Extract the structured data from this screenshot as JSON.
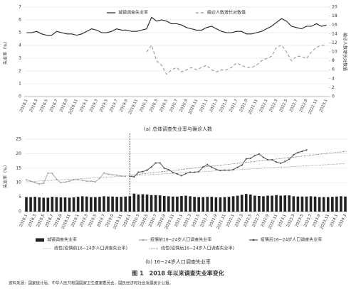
{
  "chart_data": [
    {
      "type": "line",
      "caption": "(a) 总体调查失业率与确诊人数",
      "ylabel": "失业率（%）",
      "y2label": "确诊人数增长对数值",
      "ylim": [
        0,
        7
      ],
      "yticks": [
        0,
        1,
        2,
        3,
        4,
        5,
        6,
        7
      ],
      "y2lim": [
        0,
        20
      ],
      "y2ticks": [
        0,
        2,
        4,
        6,
        8,
        10,
        12,
        14,
        16,
        18,
        20
      ],
      "grid": true,
      "categories": [
        "2018.1",
        null,
        "2018.3",
        null,
        "2018.5",
        null,
        "2018.7",
        null,
        "2018.9",
        null,
        "2018.11",
        null,
        "2019.1",
        null,
        "2019.3",
        null,
        "2019.5",
        null,
        "2019.7",
        null,
        "2019.9",
        null,
        "2019.11",
        null,
        "2020.1",
        null,
        "2020.3",
        null,
        "2020.5",
        null,
        "2020.7",
        null,
        "2020.9",
        null,
        "2020.11",
        null,
        "2021.1",
        null,
        "2021.3",
        null,
        "2021.5",
        null,
        "2021.7",
        null,
        "2021.9",
        null,
        "2021.11",
        null,
        "2022.1",
        null,
        "2022.3",
        null,
        "2022.5",
        null,
        "2022.7",
        null,
        "2022.9",
        null,
        "2022.11",
        null,
        "2023.1"
      ],
      "series": [
        {
          "name": "城镇调查失业率",
          "color": "#222222",
          "style": "solid",
          "values": [
            5.0,
            5.0,
            5.1,
            4.9,
            4.8,
            4.8,
            5.1,
            5.0,
            4.9,
            4.9,
            4.8,
            4.9,
            5.1,
            5.3,
            5.2,
            5.0,
            5.0,
            5.1,
            5.3,
            5.2,
            5.2,
            5.1,
            5.1,
            5.2,
            5.3,
            6.2,
            5.9,
            6.0,
            5.9,
            5.7,
            5.7,
            5.6,
            5.4,
            5.3,
            5.2,
            5.2,
            5.4,
            5.5,
            5.3,
            5.1,
            5.0,
            5.0,
            5.1,
            5.1,
            4.9,
            4.9,
            5.0,
            5.1,
            5.3,
            5.5,
            5.8,
            6.1,
            5.9,
            5.5,
            5.4,
            5.3,
            5.5,
            5.5,
            5.7,
            5.5,
            5.6
          ]
        },
        {
          "name": "确诊人数增长对数值",
          "color": "#999999",
          "style": "dashed",
          "axis": "y2",
          "values": [
            null,
            null,
            null,
            null,
            null,
            null,
            null,
            null,
            null,
            null,
            null,
            null,
            null,
            null,
            null,
            null,
            null,
            null,
            null,
            null,
            null,
            null,
            null,
            null,
            10,
            11.5,
            8,
            7,
            5,
            6,
            6.5,
            5.5,
            6,
            6.5,
            6,
            6.5,
            7,
            6,
            5.5,
            6,
            6,
            6.5,
            7.5,
            7,
            6.5,
            6.5,
            7,
            8,
            8.5,
            9,
            11,
            11.5,
            10,
            8,
            9,
            9,
            8.5,
            10,
            11,
            11.5,
            11.5
          ]
        }
      ]
    },
    {
      "type": "combo",
      "caption": "(b) 16~24岁人口调查失业率",
      "ylabel": "失业率（%）",
      "ylim": [
        0,
        25
      ],
      "yticks": [
        0,
        5,
        10,
        15,
        20,
        25
      ],
      "grid": true,
      "divider_at": "2020.1",
      "categories": [
        "2018.1",
        null,
        "2018.3",
        null,
        "2018.5",
        null,
        "2018.7",
        null,
        "2018.9",
        null,
        "2018.11",
        null,
        "2019.1",
        null,
        "2019.3",
        null,
        "2019.5",
        null,
        "2019.7",
        null,
        "2019.9",
        null,
        "2019.11",
        null,
        "2020.1",
        null,
        "2020.3",
        null,
        "2020.5",
        null,
        "2020.7",
        null,
        "2020.9",
        null,
        "2020.11",
        null,
        "2021.1",
        null,
        "2021.3",
        null,
        "2021.5",
        null,
        "2021.7",
        null,
        "2021.9",
        null,
        "2021.11",
        null,
        "2022.1",
        null,
        "2022.3",
        null,
        "2022.5",
        null,
        "2022.7",
        null,
        "2022.9",
        null,
        "2022.11",
        null,
        "2023.1",
        null,
        "2023.3",
        null,
        "2023.5",
        null,
        "2023.7",
        null,
        "2023.9",
        null,
        "2023.11",
        null,
        "2024.1",
        null,
        "2024.3"
      ],
      "series": [
        {
          "name": "城镇调查失业率",
          "type": "bar",
          "color": "#222222",
          "values": [
            5.0,
            5.0,
            5.1,
            4.9,
            4.8,
            4.8,
            5.1,
            5.0,
            4.9,
            4.9,
            4.8,
            4.9,
            5.1,
            5.3,
            5.2,
            5.0,
            5.0,
            5.1,
            5.3,
            5.2,
            5.2,
            5.1,
            5.1,
            5.2,
            5.3,
            6.2,
            5.9,
            6.0,
            5.9,
            5.7,
            5.7,
            5.6,
            5.4,
            5.3,
            5.2,
            5.2,
            5.4,
            5.5,
            5.3,
            5.1,
            5.0,
            5.0,
            5.1,
            5.1,
            4.9,
            4.9,
            5.0,
            5.1,
            5.3,
            5.5,
            5.8,
            6.1,
            5.9,
            5.5,
            5.4,
            5.3,
            5.5,
            5.5,
            5.7,
            5.5,
            5.6,
            5.6,
            5.3,
            5.2,
            5.2,
            5.2,
            5.3,
            5.2,
            5.0,
            5.0,
            5.0,
            5.1,
            5.2,
            5.3,
            5.2
          ]
        },
        {
          "name": "疫情前16~24岁人口调查失业率",
          "type": "line",
          "color": "#aaaaaa",
          "style": "solid",
          "marker": true,
          "trend_name": "线性(疫情前16~24岁人口调查失业率)",
          "trend_color": "#888888",
          "values": [
            11,
            10.5,
            10,
            9.5,
            9.8,
            13.3,
            13.2,
            11.2,
            10,
            10.2,
            10.5,
            11,
            11,
            10.8,
            10.5,
            10.5,
            10.3,
            11.5,
            13.3,
            12.9,
            12.7,
            12.6,
            12.3,
            12.2,
            null,
            null,
            null,
            null,
            null,
            null,
            null,
            null,
            null,
            null,
            null,
            null,
            null,
            null,
            null,
            null,
            null,
            null,
            null,
            null,
            null,
            null,
            null,
            null,
            null,
            null,
            null,
            null,
            null,
            null,
            null,
            null,
            null,
            null,
            null,
            null,
            null,
            null,
            null,
            null,
            null,
            null,
            null,
            null,
            null,
            null,
            null,
            null,
            null,
            null,
            null
          ]
        },
        {
          "name": "疫情后16~24岁人口调查失业率",
          "type": "line",
          "color": "#555555",
          "style": "solid",
          "marker": true,
          "trend_name": "线性(疫情后16~24岁人口调查失业率)",
          "trend_color": "#555555",
          "values": [
            null,
            null,
            null,
            null,
            null,
            null,
            null,
            null,
            null,
            null,
            null,
            null,
            null,
            null,
            null,
            null,
            null,
            null,
            null,
            null,
            null,
            null,
            null,
            null,
            12.2,
            12,
            13.6,
            13.8,
            14.3,
            15.4,
            16.8,
            16.8,
            15,
            14.5,
            13.5,
            13,
            12.4,
            13.1,
            13.6,
            13.6,
            13.8,
            15.4,
            16.2,
            15.3,
            14.6,
            14.2,
            14.3,
            14.3,
            14.5,
            15.3,
            16,
            18.2,
            18.4,
            19.3,
            19.9,
            18.7,
            17.9,
            17.9,
            17.1,
            16.7,
            17.3,
            18.1,
            19.6,
            20.4,
            20.8,
            21.3,
            null,
            null,
            null,
            null,
            null,
            null,
            null,
            null,
            null
          ]
        }
      ]
    }
  ],
  "figure_title": "图 1　2018 年以来调查失业率变化",
  "source": "资料来源：国家统计局、中华人民共和国国家卫生健康委员会，国民经济和社会发展统计公报。"
}
